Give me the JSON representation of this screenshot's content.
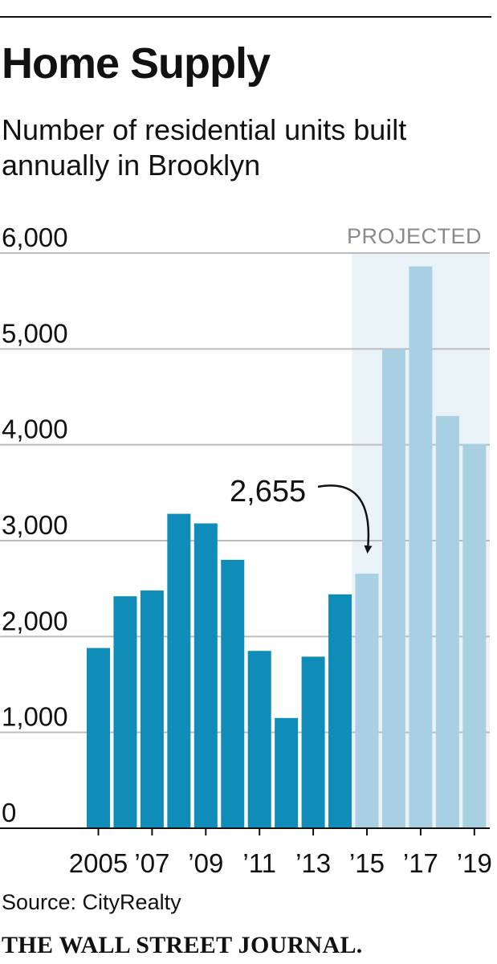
{
  "header": {
    "title": "Home Supply",
    "subtitle": "Number of residential units built annually in Brooklyn"
  },
  "footer": {
    "source": "Source: CityRealty",
    "publisher": "THE WALL STREET JOURNAL."
  },
  "colors": {
    "actual_bar": "#0f8cb8",
    "projected_bar": "#a9d0e2",
    "projected_band": "#e9f2f7",
    "gridline": "#bdbdbd",
    "axis": "#111111",
    "projected_label": "#8a8a8a"
  },
  "chart_data": {
    "type": "bar",
    "title": "Home Supply",
    "subtitle": "Number of residential units built annually in Brooklyn",
    "categories": [
      "2005",
      "2006",
      "2007",
      "2008",
      "2009",
      "2010",
      "2011",
      "2012",
      "2013",
      "2014",
      "2015",
      "2016",
      "2017",
      "2018",
      "2019"
    ],
    "values": [
      1880,
      2420,
      2480,
      3280,
      3180,
      2800,
      1850,
      1150,
      1790,
      2440,
      2655,
      5000,
      5860,
      4300,
      4010
    ],
    "projected": [
      false,
      false,
      false,
      false,
      false,
      false,
      false,
      false,
      false,
      false,
      true,
      true,
      true,
      true,
      true
    ],
    "ylim": [
      0,
      6000
    ],
    "yticks": [
      0,
      1000,
      2000,
      3000,
      4000,
      5000,
      6000
    ],
    "ytick_labels": [
      "0",
      "1,000",
      "2,000",
      "3,000",
      "4,000",
      "5,000",
      "6,000"
    ],
    "xtick_labels": [
      "2005",
      "’07",
      "’09",
      "’11",
      "’13",
      "’15",
      "’17",
      "’19"
    ],
    "xtick_categories": [
      "2005",
      "2007",
      "2009",
      "2011",
      "2013",
      "2015",
      "2017",
      "2019"
    ],
    "projected_label": "PROJECTED",
    "annotation": {
      "category": "2015",
      "text": "2,655"
    },
    "grid": true
  }
}
